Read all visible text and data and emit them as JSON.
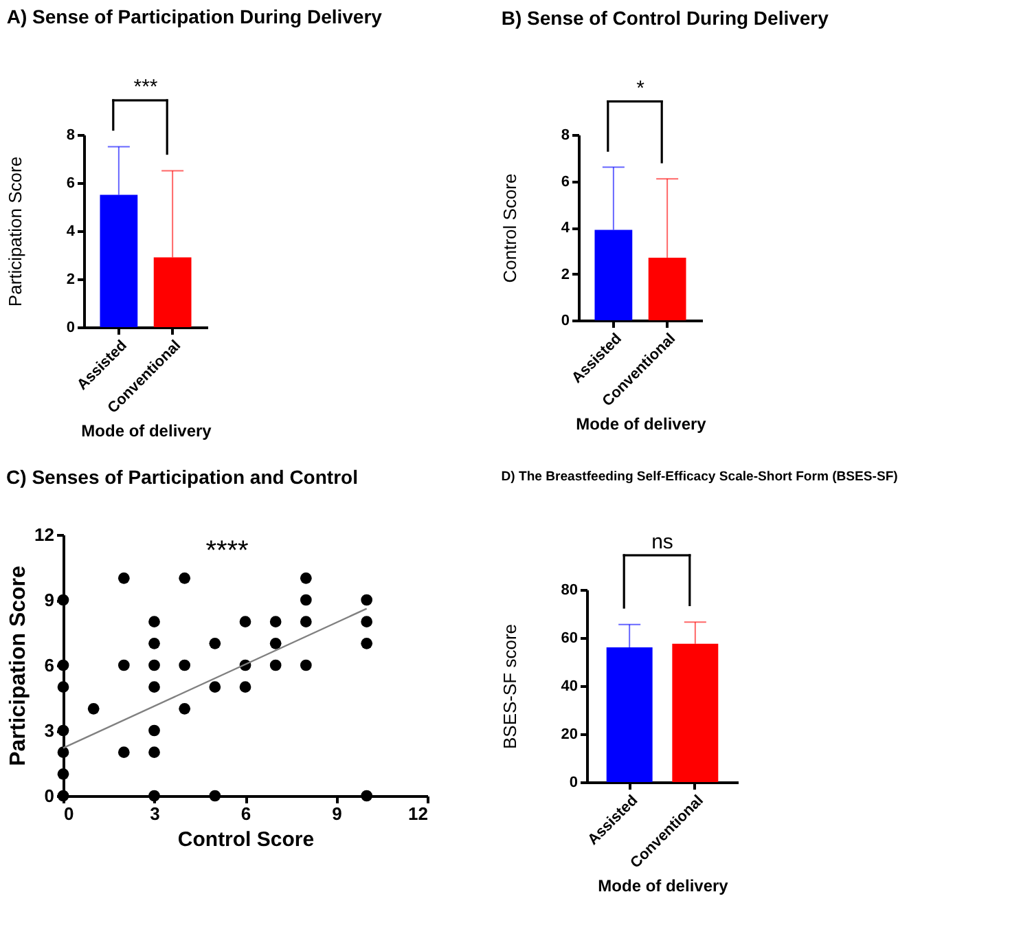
{
  "chart_data": [
    {
      "type": "bar",
      "title": "A) Sense of Participation During Delivery",
      "xlabel": "Mode of delivery",
      "ylabel": "Participation Score",
      "categories": [
        "Assisted",
        "Conventional"
      ],
      "values": [
        5.5,
        2.9
      ],
      "colors": [
        "#0000ff",
        "#ff0000"
      ],
      "errors": [
        [
          5.5,
          7.5
        ],
        [
          2.9,
          6.5
        ]
      ],
      "ylim": [
        0,
        8
      ],
      "yticks": [
        0,
        2,
        4,
        6,
        8
      ],
      "annotations": [
        "***"
      ]
    },
    {
      "type": "bar",
      "title": "B) Sense of Control During Delivery",
      "xlabel": "Mode of delivery",
      "ylabel": "Control Score",
      "categories": [
        "Assisted",
        "Conventional"
      ],
      "values": [
        3.9,
        2.7
      ],
      "colors": [
        "#0000ff",
        "#ff0000"
      ],
      "errors": [
        [
          3.9,
          6.6
        ],
        [
          2.7,
          6.1
        ]
      ],
      "ylim": [
        0,
        8
      ],
      "yticks": [
        0,
        2,
        4,
        6,
        8
      ],
      "annotations": [
        "*"
      ]
    },
    {
      "type": "scatter",
      "title": "C) Senses of Participation and Control",
      "xlabel": "Control Score",
      "ylabel": "Participation Score",
      "xlim": [
        0,
        12
      ],
      "xticks": [
        0,
        3,
        6,
        9,
        12
      ],
      "ylim": [
        0,
        12
      ],
      "yticks": [
        0,
        3,
        6,
        9,
        12
      ],
      "annotations": [
        "****"
      ],
      "series": [
        {
          "type": "scatter",
          "marker": "circle",
          "color": "#000000",
          "x": [
            0,
            0,
            0,
            0,
            0,
            0,
            0,
            1,
            2,
            2,
            2,
            3,
            3,
            3,
            3,
            3,
            3,
            3,
            4,
            4,
            4,
            5,
            5,
            5,
            6,
            6,
            6,
            7,
            7,
            7,
            8,
            8,
            8,
            8,
            10,
            10,
            10,
            10
          ],
          "values": [
            0,
            1,
            2,
            3,
            5,
            6,
            9,
            4,
            10,
            6,
            2,
            8,
            7,
            6,
            5,
            3,
            2,
            0,
            10,
            6,
            4,
            7,
            5,
            0,
            8,
            6,
            5,
            8,
            7,
            6,
            10,
            9,
            8,
            6,
            9,
            8,
            7,
            0
          ]
        },
        {
          "type": "line",
          "color": "#808080",
          "x": [
            0,
            10
          ],
          "values": [
            2.2,
            8.6
          ]
        }
      ]
    },
    {
      "type": "bar",
      "title": "D) The Breastfeeding Self-Efficacy Scale-Short Form (BSES-SF)",
      "xlabel": "Mode of delivery",
      "ylabel": "BSES-SF score",
      "categories": [
        "Assisted",
        "Conventional"
      ],
      "values": [
        56,
        57.5
      ],
      "colors": [
        "#0000ff",
        "#ff0000"
      ],
      "errors": [
        [
          56,
          65.5
        ],
        [
          57.5,
          66.5
        ]
      ],
      "ylim": [
        0,
        80
      ],
      "yticks": [
        0,
        20,
        40,
        60,
        80
      ],
      "annotations": [
        "ns"
      ]
    }
  ]
}
